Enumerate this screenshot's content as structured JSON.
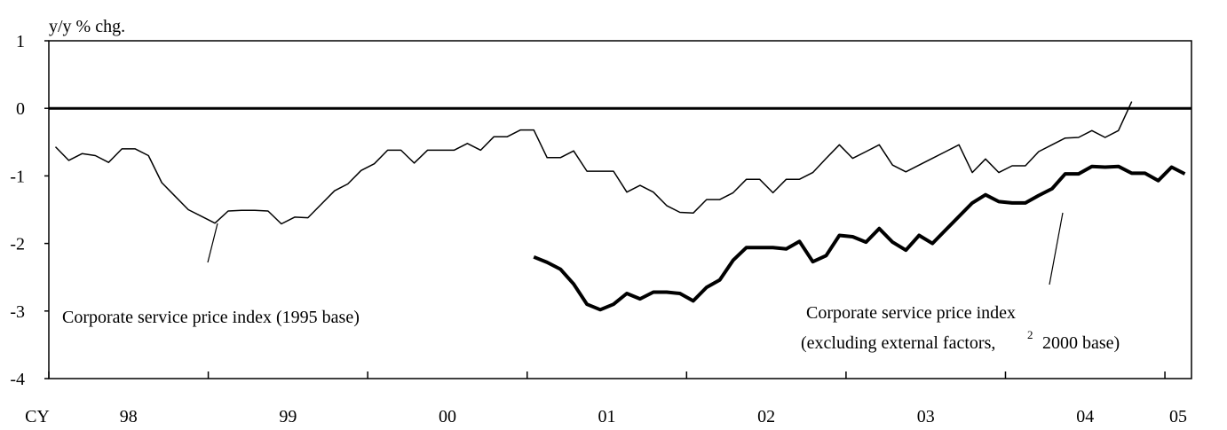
{
  "chart_data": {
    "type": "line",
    "ylabel": "y/y % chg.",
    "xlabel": "CY",
    "categories": [
      "98",
      null,
      null,
      null,
      null,
      null,
      null,
      null,
      null,
      null,
      null,
      null,
      "99",
      null,
      null,
      null,
      null,
      null,
      null,
      null,
      null,
      null,
      null,
      null,
      "00",
      null,
      null,
      null,
      null,
      null,
      null,
      null,
      null,
      null,
      null,
      null,
      "01",
      null,
      null,
      null,
      null,
      null,
      null,
      null,
      null,
      null,
      null,
      null,
      "02",
      null,
      null,
      null,
      null,
      null,
      null,
      null,
      null,
      null,
      null,
      null,
      "03",
      null,
      null,
      null,
      null,
      null,
      null,
      null,
      null,
      null,
      null,
      null,
      "04",
      null,
      null,
      null,
      null,
      null,
      null,
      null,
      null,
      null,
      null,
      null,
      "05",
      null
    ],
    "series": [
      {
        "color": "#000000",
        "values": [
          -0.57,
          -0.77,
          -0.67,
          -0.7,
          -0.8,
          -0.6,
          -0.6,
          -0.7,
          -1.1,
          -1.3,
          -1.5,
          -1.6,
          -1.7,
          -1.52,
          -1.51,
          -1.51,
          -1.52,
          -1.71,
          -1.61,
          -1.62,
          -1.42,
          -1.22,
          -1.12,
          -0.92,
          -0.82,
          -0.62,
          -0.62,
          -0.81,
          -0.62,
          -0.62,
          -0.62,
          -0.52,
          -0.62,
          -0.42,
          -0.42,
          -0.32,
          -0.32,
          -0.73,
          -0.73,
          -0.63,
          -0.93,
          -0.93,
          -0.93,
          -1.24,
          -1.14,
          -1.24,
          -1.44,
          -1.54,
          -1.55,
          -1.35,
          -1.35,
          -1.25,
          -1.05,
          -1.05,
          -1.25,
          -1.05,
          -1.05,
          -0.95,
          -0.74,
          -0.54,
          -0.74,
          -0.64,
          -0.54,
          -0.84,
          -0.94,
          -0.84,
          -0.74,
          -0.64,
          -0.54,
          -0.95,
          -0.75,
          -0.95,
          -0.85,
          -0.85,
          -0.64,
          -0.54,
          -0.44,
          -0.43,
          -0.33,
          -0.43,
          -0.33,
          0.1,
          null,
          null,
          null,
          null
        ]
      },
      {
        "color": "#000000",
        "values": [
          null,
          null,
          null,
          null,
          null,
          null,
          null,
          null,
          null,
          null,
          null,
          null,
          null,
          null,
          null,
          null,
          null,
          null,
          null,
          null,
          null,
          null,
          null,
          null,
          null,
          null,
          null,
          null,
          null,
          null,
          null,
          null,
          null,
          null,
          null,
          null,
          -2.2,
          -2.28,
          -2.38,
          -2.6,
          -2.9,
          -2.98,
          -2.9,
          -2.74,
          -2.82,
          -2.72,
          -2.72,
          -2.74,
          -2.85,
          -2.65,
          -2.54,
          -2.25,
          -2.06,
          -2.06,
          -2.06,
          -2.08,
          -1.97,
          -2.27,
          -2.18,
          -1.88,
          -1.9,
          -1.98,
          -1.78,
          -1.98,
          -2.1,
          -1.88,
          -2.0,
          -1.8,
          -1.6,
          -1.4,
          -1.28,
          -1.38,
          -1.4,
          -1.4,
          -1.29,
          -1.19,
          -0.97,
          -0.97,
          -0.86,
          -0.87,
          -0.86,
          -0.96,
          -0.96,
          -1.07,
          -0.87,
          -0.97
        ]
      }
    ],
    "ylim": [
      -4,
      1
    ],
    "yticks": [
      1,
      0,
      -1,
      -2,
      -3,
      -4
    ],
    "annotations": [
      {
        "text": "Corporate service price index (1995 base)"
      },
      {
        "line1": "Corporate service price index",
        "line2": "(excluding external factors,",
        "superscript": "2",
        "line2_end": "2000 base)"
      }
    ]
  }
}
